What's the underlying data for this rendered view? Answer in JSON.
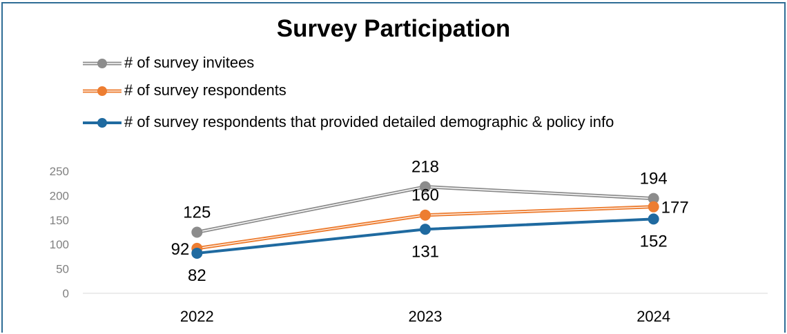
{
  "chart_data": {
    "type": "line",
    "title": "Survey Participation",
    "categories": [
      "2022",
      "2023",
      "2024"
    ],
    "series": [
      {
        "name": "# of survey invitees",
        "values": [
          125,
          218,
          194
        ],
        "color": "#8c8c8c",
        "label_pos": [
          "above",
          "above",
          "above"
        ]
      },
      {
        "name": "# of survey respondents",
        "values": [
          92,
          160,
          177
        ],
        "color": "#ed7d31",
        "label_pos": [
          "left",
          "above",
          "right"
        ]
      },
      {
        "name": "# of survey respondents that provided detailed demographic & policy info",
        "values": [
          82,
          131,
          152
        ],
        "color": "#1f6aa0",
        "label_pos": [
          "below",
          "below",
          "below"
        ]
      }
    ],
    "ylim": [
      0,
      250
    ],
    "yticks": [
      0,
      50,
      100,
      150,
      200,
      250
    ],
    "legend": "top-left",
    "grid": false
  }
}
